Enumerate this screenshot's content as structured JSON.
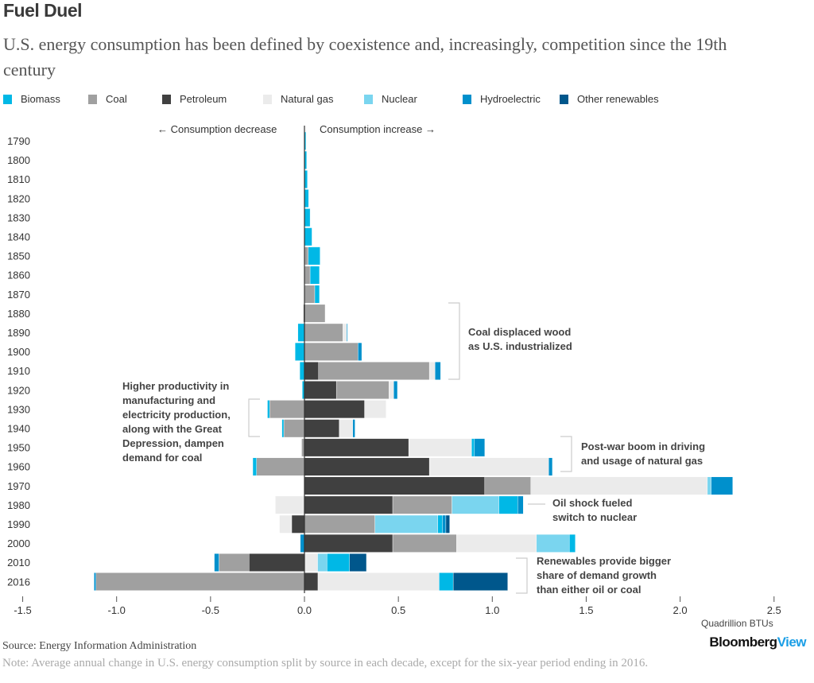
{
  "title": "Fuel Duel",
  "subtitle": "U.S. energy consumption has been defined by coexistence and, increasingly, competition since the 19th century",
  "direction_labels": {
    "left": "← Consumption decrease",
    "right": "Consumption increase →"
  },
  "annotations": [
    {
      "id": "coal",
      "text_lines": [
        "Coal displaced wood",
        "as U.S. industrialized"
      ]
    },
    {
      "id": "productivity",
      "text_lines": [
        "Higher productivity in",
        "manufacturing and",
        "electricity production,",
        "along with the Great",
        "Depression, dampen",
        "demand for coal"
      ]
    },
    {
      "id": "postwar",
      "text_lines": [
        "Post-war boom in driving",
        "and usage of natural gas"
      ]
    },
    {
      "id": "oilshock",
      "text_lines": [
        "Oil shock fueled",
        "switch to nuclear"
      ]
    },
    {
      "id": "renewables",
      "text_lines": [
        "Renewables provide bigger",
        "share of demand growth",
        "than either oil or coal"
      ]
    }
  ],
  "source": "Source: Energy Information Administration",
  "note": "Note: Average annual change in U.S. energy consumption split by source in each decade, except for the six-year period ending in 2016.",
  "logo": {
    "part1": "Bloomberg",
    "part2": "View"
  },
  "colors": {
    "Biomass": "#00b8e6",
    "Coal": "#a0a0a0",
    "Petroleum": "#404040",
    "Natural gas": "#ebebeb",
    "Nuclear": "#7ad5ef",
    "Hydroelectric": "#0090cc",
    "Other renewables": "#00578c"
  },
  "chart_data": {
    "type": "bar",
    "orientation": "horizontal-stacked-diverging",
    "title": "Fuel Duel",
    "xlabel": "Quadrillion BTUs",
    "ylabel": "",
    "xlim": [
      -1.5,
      2.5
    ],
    "xticks": [
      -1.5,
      -1.0,
      -0.5,
      0.0,
      0.5,
      1.0,
      1.5,
      2.0,
      2.5
    ],
    "xtick_labels": [
      "-1.5",
      "-1.0",
      "-0.5",
      "0.0",
      "0.5",
      "1.0",
      "1.5",
      "2.0",
      "2.5"
    ],
    "legend": [
      "Biomass",
      "Coal",
      "Petroleum",
      "Natural gas",
      "Nuclear",
      "Hydroelectric",
      "Other renewables"
    ],
    "legend_position": "top",
    "grid": false,
    "categories": [
      "1790",
      "1800",
      "1810",
      "1820",
      "1830",
      "1840",
      "1850",
      "1860",
      "1870",
      "1880",
      "1890",
      "1900",
      "1910",
      "1920",
      "1930",
      "1940",
      "1950",
      "1960",
      "1970",
      "1980",
      "1990",
      "2000",
      "2010",
      "2016"
    ],
    "rows": [
      {
        "year": "1790",
        "positive": [
          [
            "Biomass",
            0.008
          ]
        ],
        "negative": []
      },
      {
        "year": "1800",
        "positive": [
          [
            "Biomass",
            0.012
          ]
        ],
        "negative": []
      },
      {
        "year": "1810",
        "positive": [
          [
            "Biomass",
            0.016
          ]
        ],
        "negative": []
      },
      {
        "year": "1820",
        "positive": [
          [
            "Biomass",
            0.022
          ]
        ],
        "negative": []
      },
      {
        "year": "1830",
        "positive": [
          [
            "Biomass",
            0.03
          ]
        ],
        "negative": []
      },
      {
        "year": "1840",
        "positive": [
          [
            "Biomass",
            0.04
          ]
        ],
        "negative": []
      },
      {
        "year": "1850",
        "positive": [
          [
            "Coal",
            0.02
          ],
          [
            "Biomass",
            0.063
          ]
        ],
        "negative": []
      },
      {
        "year": "1860",
        "positive": [
          [
            "Coal",
            0.03
          ],
          [
            "Biomass",
            0.05
          ]
        ],
        "negative": []
      },
      {
        "year": "1870",
        "positive": [
          [
            "Coal",
            0.055
          ],
          [
            "Biomass",
            0.025
          ]
        ],
        "negative": []
      },
      {
        "year": "1880",
        "positive": [
          [
            "Coal",
            0.11
          ]
        ],
        "negative": [
          [
            "Petroleum",
            -0.005
          ]
        ]
      },
      {
        "year": "1890",
        "positive": [
          [
            "Coal",
            0.205
          ],
          [
            "Natural gas",
            0.02
          ],
          [
            "Hydroelectric",
            0.005
          ]
        ],
        "negative": [
          [
            "Biomass",
            -0.035
          ]
        ]
      },
      {
        "year": "1900",
        "positive": [
          [
            "Coal",
            0.285
          ],
          [
            "Hydroelectric",
            0.02
          ]
        ],
        "negative": [
          [
            "Biomass",
            -0.05
          ]
        ]
      },
      {
        "year": "1910",
        "positive": [
          [
            "Petroleum",
            0.075
          ],
          [
            "Coal",
            0.59
          ],
          [
            "Natural gas",
            0.03
          ],
          [
            "Hydroelectric",
            0.03
          ]
        ],
        "negative": [
          [
            "Biomass",
            -0.025
          ]
        ]
      },
      {
        "year": "1920",
        "positive": [
          [
            "Petroleum",
            0.17
          ],
          [
            "Coal",
            0.28
          ],
          [
            "Natural gas",
            0.025
          ],
          [
            "Hydroelectric",
            0.02
          ]
        ],
        "negative": [
          [
            "Biomass",
            -0.012
          ]
        ]
      },
      {
        "year": "1930",
        "positive": [
          [
            "Petroleum",
            0.32
          ],
          [
            "Natural gas",
            0.115
          ]
        ],
        "negative": [
          [
            "Coal",
            -0.185
          ],
          [
            "Biomass",
            -0.012
          ]
        ]
      },
      {
        "year": "1940",
        "positive": [
          [
            "Petroleum",
            0.185
          ],
          [
            "Natural gas",
            0.072
          ],
          [
            "Hydroelectric",
            0.012
          ]
        ],
        "negative": [
          [
            "Coal",
            -0.11
          ],
          [
            "Biomass",
            -0.01
          ]
        ]
      },
      {
        "year": "1950",
        "positive": [
          [
            "Petroleum",
            0.555
          ],
          [
            "Natural gas",
            0.335
          ],
          [
            "Biomass",
            0.015
          ],
          [
            "Hydroelectric",
            0.055
          ]
        ],
        "negative": [
          [
            "Coal",
            -0.015
          ]
        ]
      },
      {
        "year": "1960",
        "positive": [
          [
            "Petroleum",
            0.665
          ],
          [
            "Natural gas",
            0.635
          ],
          [
            "Hydroelectric",
            0.02
          ]
        ],
        "negative": [
          [
            "Coal",
            -0.255
          ],
          [
            "Biomass",
            -0.02
          ]
        ]
      },
      {
        "year": "1970",
        "positive": [
          [
            "Petroleum",
            0.96
          ],
          [
            "Coal",
            0.245
          ],
          [
            "Natural gas",
            0.94
          ],
          [
            "Nuclear",
            0.02
          ],
          [
            "Hydroelectric",
            0.115
          ]
        ],
        "negative": []
      },
      {
        "year": "1980",
        "positive": [
          [
            "Petroleum",
            0.47
          ],
          [
            "Coal",
            0.315
          ],
          [
            "Nuclear",
            0.25
          ],
          [
            "Biomass",
            0.1
          ],
          [
            "Hydroelectric",
            0.03
          ]
        ],
        "negative": [
          [
            "Natural gas",
            -0.155
          ]
        ]
      },
      {
        "year": "1990",
        "positive": [
          [
            "Coal",
            0.375
          ],
          [
            "Nuclear",
            0.335
          ],
          [
            "Biomass",
            0.025
          ],
          [
            "Hydroelectric",
            0.018
          ],
          [
            "Other renewables",
            0.02
          ]
        ],
        "negative": [
          [
            "Petroleum",
            -0.068
          ],
          [
            "Natural gas",
            -0.065
          ]
        ]
      },
      {
        "year": "2000",
        "positive": [
          [
            "Petroleum",
            0.47
          ],
          [
            "Coal",
            0.34
          ],
          [
            "Natural gas",
            0.425
          ],
          [
            "Nuclear",
            0.175
          ],
          [
            "Biomass",
            0.032
          ]
        ],
        "negative": [
          [
            "Hydroelectric",
            -0.022
          ]
        ]
      },
      {
        "year": "2010",
        "positive": [
          [
            "Natural gas",
            0.07
          ],
          [
            "Nuclear",
            0.05
          ],
          [
            "Biomass",
            0.12
          ],
          [
            "Other renewables",
            0.09
          ]
        ],
        "negative": [
          [
            "Petroleum",
            -0.295
          ],
          [
            "Coal",
            -0.16
          ],
          [
            "Hydroelectric",
            -0.025
          ]
        ]
      },
      {
        "year": "2016",
        "positive": [
          [
            "Petroleum",
            0.072
          ],
          [
            "Natural gas",
            0.645
          ],
          [
            "Biomass",
            0.075
          ],
          [
            "Other renewables",
            0.29
          ]
        ],
        "negative": [
          [
            "Coal",
            -1.11
          ],
          [
            "Hydroelectric",
            -0.01
          ]
        ]
      }
    ]
  }
}
